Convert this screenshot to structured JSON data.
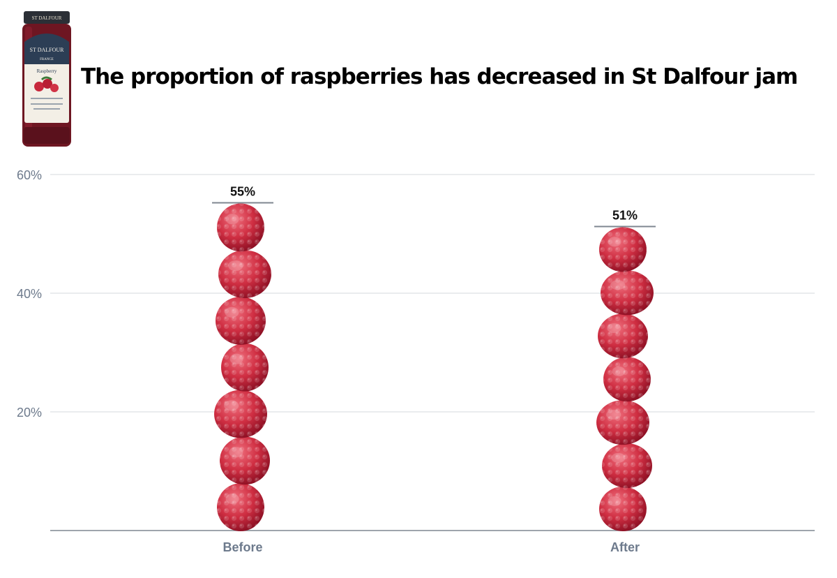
{
  "title": "The proportion of raspberries has decreased in St Dalfour jam",
  "jar": {
    "brand": "ST DALFOUR",
    "origin": "FRANCE",
    "flavor": "Raspberry",
    "icon": "jam-jar-icon"
  },
  "colors": {
    "raspberry": "#c8283c",
    "raspberry_dark": "#8e1024",
    "grid": "#e3e5e8",
    "tick_text": "#6d7a8c",
    "title_text": "#000000"
  },
  "chart_data": {
    "type": "bar",
    "title": "The proportion of raspberries has decreased in St Dalfour jam",
    "categories": [
      "Before",
      "After"
    ],
    "values": [
      55,
      51
    ],
    "data_labels": [
      "55%",
      "51%"
    ],
    "y_ticks": [
      20,
      40,
      60
    ],
    "y_tick_labels": [
      "20%",
      "40%",
      "60%"
    ],
    "ylim": [
      0,
      60
    ],
    "xlabel": "",
    "ylabel": "",
    "grid": true,
    "bar_style": "stacked raspberry illustrations"
  }
}
